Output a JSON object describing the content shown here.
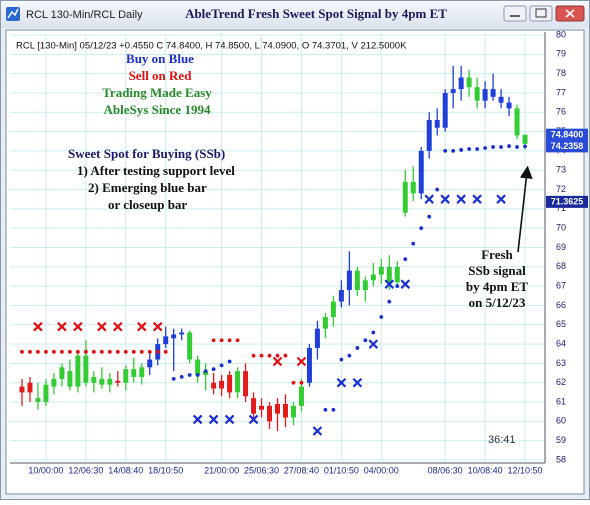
{
  "window_title": "RCL 130-Min/RCL Daily",
  "chart_data": {
    "type": "candlestick",
    "title": "AbleTrend Fresh Sweet Spot Signal by 4pm ET",
    "header": "RCL [130-Min] 05/12/23 +0.4550 C 74.8400, H 74.8500, L 74.0900, O 74.3701, V 212.5000K",
    "annotations": [
      {
        "text": "Buy on Blue",
        "color": "#1a2fc8"
      },
      {
        "text": "Sell on Red",
        "color": "#e01010"
      },
      {
        "text": "Trading Made Easy",
        "color": "#2a8a2a"
      },
      {
        "text": "AbleSys Since 1994",
        "color": "#2a8a2a"
      },
      {
        "text": "Sweet Spot for Buying (SSb)",
        "color": "#1a1a6a"
      },
      {
        "text": "1) After testing support level",
        "color": "#111111"
      },
      {
        "text": "2) Emerging blue bar",
        "color": "#111111"
      },
      {
        "text": "or closeup bar",
        "color": "#111111"
      },
      {
        "text": "Fresh",
        "color": "#111111"
      },
      {
        "text": "SSb signal",
        "color": "#111111"
      },
      {
        "text": "by 4pm ET",
        "color": "#111111"
      },
      {
        "text": "on 5/12/23",
        "color": "#111111"
      }
    ],
    "clock": "36:41",
    "xlim": [
      -1.5,
      65.5
    ],
    "xticks": [
      {
        "value": 3,
        "label": "10/00:00"
      },
      {
        "value": 8,
        "label": "12/06:30"
      },
      {
        "value": 13,
        "label": "14/08:40"
      },
      {
        "value": 18,
        "label": "18/10:50"
      },
      {
        "value": 25,
        "label": "21/00:00"
      },
      {
        "value": 30,
        "label": "25/06:30"
      },
      {
        "value": 35,
        "label": "27/08:40"
      },
      {
        "value": 40,
        "label": "01/10:50"
      },
      {
        "value": 45,
        "label": "04/00:00"
      },
      {
        "value": 53,
        "label": "08/06:30"
      },
      {
        "value": 58,
        "label": "10/08:40"
      },
      {
        "value": 63,
        "label": "12/10:50"
      }
    ],
    "ylim": [
      58,
      80
    ],
    "yticks": [
      58,
      59,
      60,
      61,
      62,
      63,
      64,
      65,
      66,
      67,
      68,
      69,
      70,
      71,
      72,
      73,
      74,
      75,
      76,
      77,
      78,
      79,
      80
    ],
    "grid": true,
    "candles": {
      "open": [
        61.8,
        61.5,
        61.2,
        61.0,
        61.8,
        62.2,
        62.6,
        61.8,
        63.4,
        62.0,
        62.2,
        61.9,
        62.1,
        62.0,
        62.7,
        62.3,
        62.8,
        63.2,
        64.0,
        64.3,
        64.5,
        64.6,
        63.2,
        62.4,
        62.0,
        61.7,
        62.4,
        61.5,
        62.6,
        61.2,
        60.6,
        60.8,
        60.4,
        60.9,
        60.2,
        60.8,
        62.0,
        63.8,
        64.8,
        65.4,
        66.2,
        66.8,
        67.8,
        66.8,
        67.3,
        67.6,
        68.0,
        67.2,
        70.8,
        72.4,
        71.8,
        74.0,
        75.6,
        75.2,
        77.0,
        77.2,
        77.8,
        77.3,
        76.6,
        77.2,
        76.8,
        76.5,
        76.2,
        74.3701
      ],
      "high": [
        62.2,
        62.3,
        62.0,
        62.2,
        62.5,
        63.0,
        63.2,
        63.6,
        64.2,
        62.6,
        62.8,
        62.5,
        62.6,
        62.9,
        63.3,
        63.0,
        63.6,
        64.3,
        64.9,
        64.8,
        64.8,
        64.7,
        63.4,
        63.0,
        62.5,
        62.4,
        62.6,
        62.8,
        63.0,
        61.5,
        61.2,
        61.0,
        61.2,
        61.4,
        61.0,
        62.2,
        64.0,
        65.2,
        65.6,
        66.5,
        67.3,
        68.8,
        68.0,
        67.5,
        68.2,
        68.4,
        68.6,
        68.3,
        73.0,
        73.2,
        74.2,
        76.0,
        76.2,
        77.2,
        78.4,
        78.4,
        78.2,
        77.8,
        77.6,
        78.0,
        77.2,
        76.8,
        76.4,
        74.85
      ],
      "low": [
        60.8,
        61.0,
        60.6,
        60.8,
        61.4,
        61.8,
        61.6,
        61.5,
        61.8,
        61.5,
        61.7,
        61.5,
        61.8,
        61.6,
        62.0,
        61.9,
        62.4,
        62.9,
        63.8,
        62.6,
        64.2,
        63.0,
        62.0,
        61.6,
        61.4,
        61.3,
        61.2,
        61.2,
        61.0,
        60.0,
        60.2,
        59.6,
        59.5,
        59.7,
        59.8,
        60.5,
        61.8,
        63.2,
        64.3,
        64.9,
        65.9,
        66.0,
        66.5,
        66.2,
        67.0,
        67.1,
        66.8,
        67.0,
        70.6,
        71.4,
        71.5,
        73.6,
        74.8,
        75.0,
        76.2,
        76.6,
        76.8,
        76.2,
        76.2,
        76.6,
        76.2,
        75.8,
        74.6,
        74.09
      ],
      "close": [
        61.5,
        62.0,
        61.0,
        61.9,
        62.2,
        62.8,
        61.8,
        63.4,
        62.0,
        62.3,
        61.9,
        62.2,
        62.0,
        62.7,
        62.3,
        62.8,
        63.2,
        64.0,
        64.4,
        64.5,
        64.6,
        63.2,
        62.4,
        62.6,
        61.7,
        62.1,
        61.5,
        62.6,
        61.3,
        60.4,
        60.8,
        60.0,
        60.9,
        60.2,
        60.8,
        61.8,
        63.8,
        64.8,
        65.4,
        66.2,
        66.8,
        67.8,
        66.8,
        67.3,
        67.6,
        68.0,
        67.2,
        68.0,
        72.4,
        71.8,
        74.0,
        75.6,
        75.2,
        77.0,
        77.2,
        77.8,
        77.3,
        76.6,
        77.2,
        76.8,
        76.5,
        76.2,
        74.8,
        74.84
      ],
      "colors": [
        "#e31b1b",
        "#e31b1b",
        "#33cc33",
        "#33cc33",
        "#33cc33",
        "#33cc33",
        "#33cc33",
        "#33cc33",
        "#33cc33",
        "#33cc33",
        "#33cc33",
        "#33cc33",
        "#e31b1b",
        "#33cc33",
        "#33cc33",
        "#33cc33",
        "#1f3fd9",
        "#1f3fd9",
        "#1f3fd9",
        "#1f3fd9",
        "#1f3fd9",
        "#33cc33",
        "#33cc33",
        "#33cc33",
        "#e31b1b",
        "#e31b1b",
        "#e31b1b",
        "#33cc33",
        "#e31b1b",
        "#e31b1b",
        "#e31b1b",
        "#e31b1b",
        "#e31b1b",
        "#e31b1b",
        "#33cc33",
        "#33cc33",
        "#1f3fd9",
        "#1f3fd9",
        "#33cc33",
        "#33cc33",
        "#1f3fd9",
        "#1f3fd9",
        "#33cc33",
        "#33cc33",
        "#33cc33",
        "#33cc33",
        "#33cc33",
        "#33cc33",
        "#33cc33",
        "#33cc33",
        "#1f3fd9",
        "#1f3fd9",
        "#1f3fd9",
        "#1f3fd9",
        "#1f3fd9",
        "#1f3fd9",
        "#33cc33",
        "#33cc33",
        "#1f3fd9",
        "#1f3fd9",
        "#1f3fd9",
        "#1f3fd9",
        "#33cc33",
        "#33cc33"
      ]
    },
    "dot_series": [
      {
        "color": "#e01010",
        "x": [
          0,
          1,
          2,
          3,
          4,
          5,
          6,
          7,
          8,
          9,
          10,
          11,
          12,
          13,
          14,
          15,
          16,
          17,
          18,
          24,
          25,
          26,
          27,
          29,
          30,
          31,
          32,
          33,
          34,
          35
        ],
        "values": [
          63.6,
          63.6,
          63.6,
          63.6,
          63.6,
          63.6,
          63.6,
          63.6,
          63.6,
          63.6,
          63.6,
          63.6,
          63.6,
          63.6,
          63.6,
          63.6,
          63.6,
          63.6,
          63.6,
          64.2,
          64.2,
          64.2,
          64.2,
          63.4,
          63.4,
          63.4,
          63.4,
          63.4,
          62.0,
          62.0
        ]
      },
      {
        "color": "#1a2fd0",
        "x": [
          19,
          20,
          21,
          22,
          23,
          24,
          25,
          26,
          38,
          39,
          40,
          41,
          42,
          43,
          44,
          45,
          46,
          47,
          48,
          49,
          50,
          51,
          52,
          53,
          54,
          55,
          56,
          57,
          58,
          59,
          60,
          61,
          62,
          63
        ],
        "values": [
          62.2,
          62.3,
          62.4,
          62.4,
          62.6,
          62.7,
          62.9,
          63.1,
          60.6,
          60.6,
          63.2,
          63.4,
          63.8,
          64.2,
          64.6,
          65.4,
          66.2,
          67.0,
          68.4,
          69.2,
          70.0,
          70.6,
          72.0,
          74.0,
          74.0,
          74.05,
          74.1,
          74.1,
          74.15,
          74.2,
          74.2,
          74.25,
          74.2,
          74.2358
        ]
      }
    ],
    "markers": [
      {
        "color": "#e01010",
        "x": [
          2,
          5,
          7,
          10,
          12,
          15,
          17,
          32,
          35
        ],
        "values": [
          64.9,
          64.9,
          64.9,
          64.9,
          64.9,
          64.9,
          64.9,
          63.1,
          63.1
        ]
      },
      {
        "color": "#1a2fd0",
        "x": [
          22,
          24,
          26,
          29,
          37,
          40,
          42,
          44,
          46,
          48,
          51,
          53,
          55,
          57,
          60
        ],
        "values": [
          60.1,
          60.1,
          60.1,
          60.1,
          59.5,
          62.0,
          62.0,
          64.0,
          67.1,
          67.1,
          71.5,
          71.5,
          71.5,
          71.5,
          71.5
        ]
      }
    ],
    "price_labels": [
      {
        "value": 74.84,
        "label": "74.8400",
        "color": "#2a4ad8"
      },
      {
        "value": 74.2358,
        "label": "74.2358",
        "color": "#2a4ad8"
      },
      {
        "value": 71.3625,
        "label": "71.3625",
        "color": "#1a2a9a"
      }
    ]
  }
}
